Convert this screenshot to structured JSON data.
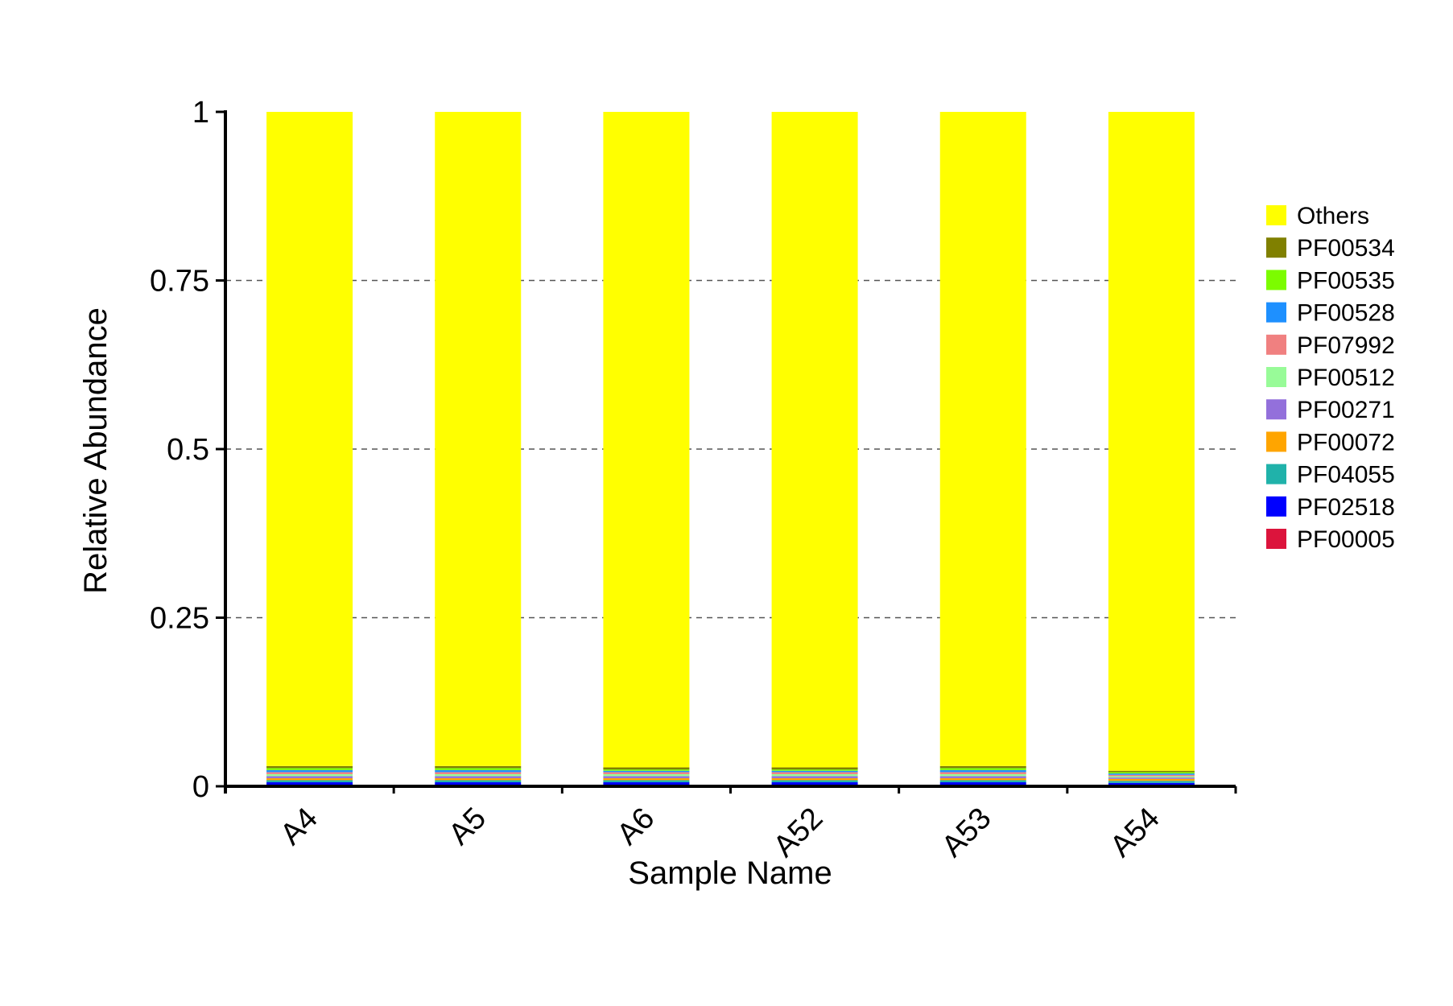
{
  "chart_data": {
    "type": "bar",
    "stacked": true,
    "xlabel": "Sample Name",
    "ylabel": "Relative Abundance",
    "ylim": [
      0,
      1
    ],
    "yticks": [
      "0",
      "0.25",
      "0.5",
      "0.75",
      "1"
    ],
    "grid": "horizontal dashed at 0.25, 0.5, 0.75",
    "legend_position": "right",
    "categories": [
      "A4",
      "A5",
      "A6",
      "A52",
      "A53",
      "A54"
    ],
    "series": [
      {
        "name": "PF00005",
        "color": "#DC143C",
        "values": [
          0.002,
          0.002,
          0.002,
          0.002,
          0.002,
          0.002
        ]
      },
      {
        "name": "PF02518",
        "color": "#0000FF",
        "values": [
          0.004,
          0.004,
          0.004,
          0.004,
          0.004,
          0.003
        ]
      },
      {
        "name": "PF04055",
        "color": "#20B2AA",
        "values": [
          0.003,
          0.003,
          0.003,
          0.003,
          0.003,
          0.003
        ]
      },
      {
        "name": "PF00072",
        "color": "#FFA500",
        "values": [
          0.003,
          0.003,
          0.003,
          0.003,
          0.003,
          0.003
        ]
      },
      {
        "name": "PF00271",
        "color": "#9370DB",
        "values": [
          0.003,
          0.003,
          0.003,
          0.003,
          0.003,
          0.002
        ]
      },
      {
        "name": "PF00512",
        "color": "#98FB98",
        "values": [
          0.003,
          0.003,
          0.003,
          0.003,
          0.003,
          0.002
        ]
      },
      {
        "name": "PF07992",
        "color": "#F08080",
        "values": [
          0.003,
          0.003,
          0.003,
          0.003,
          0.003,
          0.002
        ]
      },
      {
        "name": "PF00528",
        "color": "#1E90FF",
        "values": [
          0.003,
          0.003,
          0.002,
          0.002,
          0.003,
          0.002
        ]
      },
      {
        "name": "PF00535",
        "color": "#7CFC00",
        "values": [
          0.003,
          0.003,
          0.002,
          0.002,
          0.003,
          0.002
        ]
      },
      {
        "name": "PF00534",
        "color": "#808000",
        "values": [
          0.003,
          0.003,
          0.003,
          0.003,
          0.003,
          0.002
        ]
      },
      {
        "name": "Others",
        "color": "#FFFF00",
        "values": [
          0.97,
          0.97,
          0.972,
          0.972,
          0.97,
          0.977
        ]
      }
    ]
  }
}
